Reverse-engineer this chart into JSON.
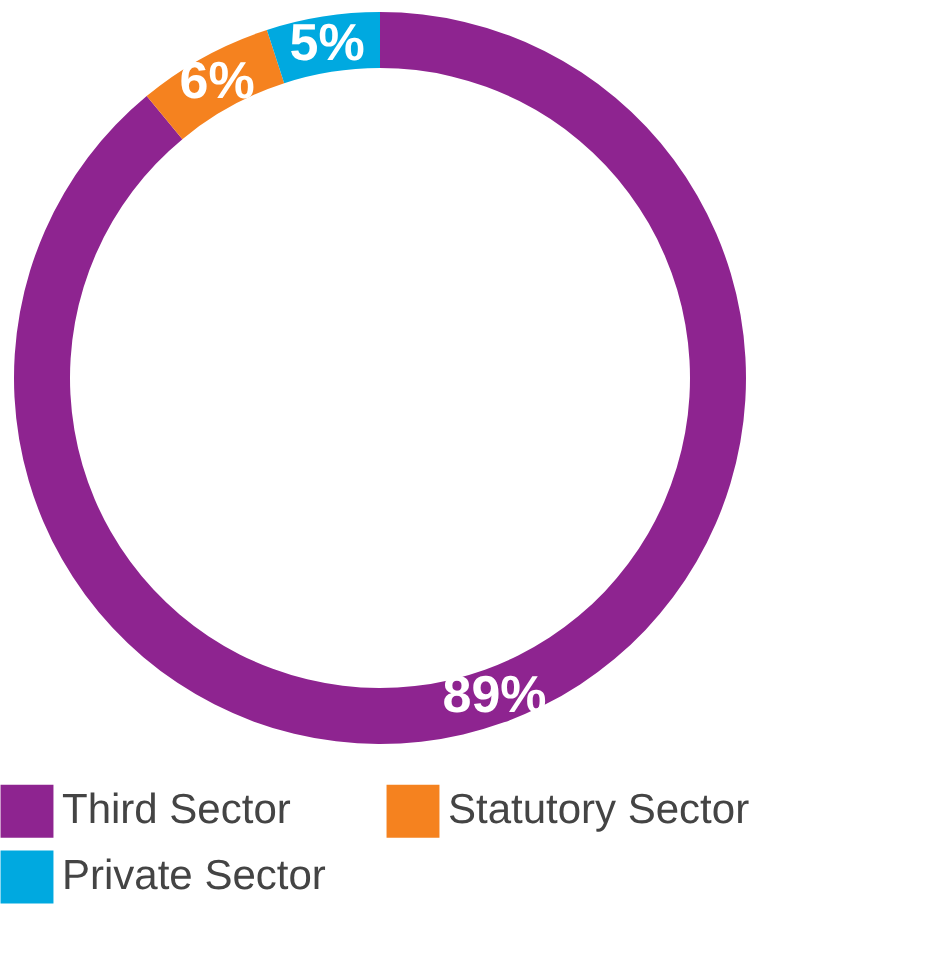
{
  "chart_data": {
    "type": "donut",
    "categories": [
      "Third Sector",
      "Statutory Sector",
      "Private Sector"
    ],
    "values": [
      89,
      6,
      5
    ],
    "colors": [
      "#8e2490",
      "#f5821f",
      "#00a9e0"
    ],
    "value_labels": [
      "89%",
      "6%",
      "5%"
    ],
    "legend": "bottom"
  }
}
